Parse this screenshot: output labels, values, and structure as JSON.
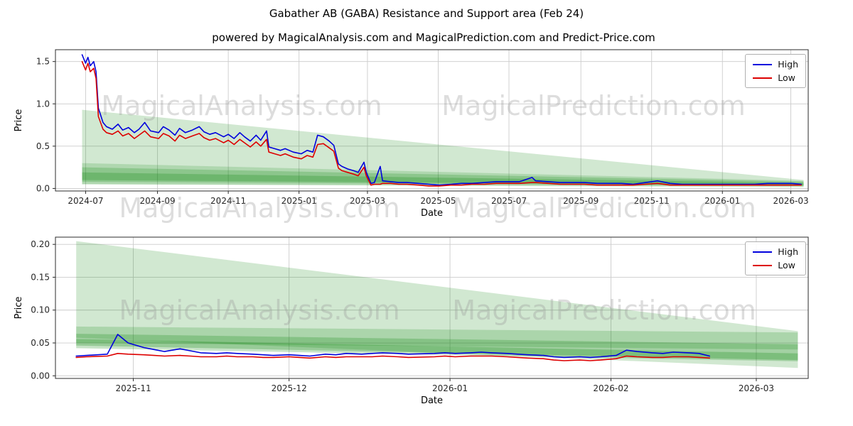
{
  "title": "Gabather AB (GABA) Resistance and Support area (Feb 24)",
  "subtitle": "powered by MagicalAnalysis.com and MagicalPrediction.com and Predict-Price.com",
  "watermarks": [
    "MagicalAnalysis.com",
    "MagicalPrediction.com"
  ],
  "colors": {
    "high": "#0000dd",
    "low": "#dd0000",
    "band": "#008000",
    "grid": "#cccccc",
    "spine": "#2b2b2b",
    "text": "#262626"
  },
  "chart_data": [
    {
      "type": "line",
      "title": "",
      "xlabel": "Date",
      "ylabel": "Price",
      "grid": true,
      "legend_position": "upper right",
      "xlim": [
        "2024-06-05",
        "2026-03-16"
      ],
      "ylim": [
        -0.03,
        1.64
      ],
      "x_ticks": [
        "2024-07",
        "2024-09",
        "2024-11",
        "2025-01",
        "2025-03",
        "2025-05",
        "2025-07",
        "2025-09",
        "2025-11",
        "2026-01",
        "2026-03"
      ],
      "y_ticks": [
        "0.0",
        "0.5",
        "1.0",
        "1.5"
      ],
      "dates": [
        "2024-06-28",
        "2024-07-01",
        "2024-07-03",
        "2024-07-05",
        "2024-07-08",
        "2024-07-10",
        "2024-07-12",
        "2024-07-16",
        "2024-07-19",
        "2024-07-24",
        "2024-07-29",
        "2024-08-02",
        "2024-08-07",
        "2024-08-12",
        "2024-08-16",
        "2024-08-21",
        "2024-08-26",
        "2024-09-02",
        "2024-09-06",
        "2024-09-11",
        "2024-09-16",
        "2024-09-20",
        "2024-09-25",
        "2024-10-01",
        "2024-10-07",
        "2024-10-11",
        "2024-10-16",
        "2024-10-21",
        "2024-10-28",
        "2024-11-01",
        "2024-11-06",
        "2024-11-11",
        "2024-11-15",
        "2024-11-20",
        "2024-11-25",
        "2024-11-29",
        "2024-12-04",
        "2024-12-06",
        "2024-12-11",
        "2024-12-16",
        "2024-12-20",
        "2024-12-27",
        "2025-01-03",
        "2025-01-08",
        "2025-01-13",
        "2025-01-17",
        "2025-01-22",
        "2025-01-27",
        "2025-01-31",
        "2025-02-04",
        "2025-02-07",
        "2025-02-12",
        "2025-02-17",
        "2025-02-21",
        "2025-02-26",
        "2025-02-28",
        "2025-03-04",
        "2025-03-07",
        "2025-03-12",
        "2025-03-14",
        "2025-03-21",
        "2025-03-28",
        "2025-04-04",
        "2025-04-14",
        "2025-04-23",
        "2025-05-02",
        "2025-05-12",
        "2025-05-21",
        "2025-05-30",
        "2025-06-10",
        "2025-06-20",
        "2025-06-30",
        "2025-07-10",
        "2025-07-21",
        "2025-07-24",
        "2025-08-04",
        "2025-08-14",
        "2025-08-25",
        "2025-09-04",
        "2025-09-15",
        "2025-09-25",
        "2025-10-06",
        "2025-10-16",
        "2025-10-27",
        "2025-11-06",
        "2025-11-17",
        "2025-11-27",
        "2025-12-08",
        "2025-12-18",
        "2025-12-29",
        "2026-01-08",
        "2026-01-19",
        "2026-01-29",
        "2026-02-09",
        "2026-02-19",
        "2026-03-02",
        "2026-03-10"
      ],
      "series": [
        {
          "name": "High",
          "color": "#0000dd",
          "values": [
            1.58,
            1.48,
            1.55,
            1.45,
            1.5,
            1.38,
            0.95,
            0.78,
            0.73,
            0.7,
            0.76,
            0.69,
            0.72,
            0.66,
            0.7,
            0.78,
            0.68,
            0.66,
            0.73,
            0.69,
            0.63,
            0.71,
            0.66,
            0.69,
            0.73,
            0.67,
            0.64,
            0.66,
            0.61,
            0.64,
            0.59,
            0.66,
            0.61,
            0.56,
            0.63,
            0.57,
            0.68,
            0.49,
            0.47,
            0.45,
            0.47,
            0.43,
            0.41,
            0.45,
            0.43,
            0.63,
            0.61,
            0.56,
            0.51,
            0.29,
            0.26,
            0.23,
            0.21,
            0.19,
            0.31,
            0.19,
            0.06,
            0.07,
            0.26,
            0.09,
            0.08,
            0.07,
            0.07,
            0.06,
            0.05,
            0.04,
            0.05,
            0.06,
            0.06,
            0.07,
            0.08,
            0.08,
            0.08,
            0.13,
            0.09,
            0.08,
            0.07,
            0.07,
            0.07,
            0.06,
            0.06,
            0.06,
            0.05,
            0.07,
            0.09,
            0.06,
            0.05,
            0.05,
            0.05,
            0.05,
            0.05,
            0.05,
            0.05,
            0.06,
            0.06,
            0.06,
            0.05
          ]
        },
        {
          "name": "Low",
          "color": "#dd0000",
          "values": [
            1.5,
            1.4,
            1.48,
            1.38,
            1.42,
            1.3,
            0.85,
            0.7,
            0.66,
            0.64,
            0.68,
            0.62,
            0.65,
            0.59,
            0.63,
            0.68,
            0.61,
            0.59,
            0.65,
            0.62,
            0.56,
            0.63,
            0.59,
            0.62,
            0.65,
            0.6,
            0.57,
            0.59,
            0.54,
            0.57,
            0.52,
            0.58,
            0.54,
            0.49,
            0.55,
            0.5,
            0.58,
            0.43,
            0.41,
            0.39,
            0.41,
            0.37,
            0.35,
            0.39,
            0.37,
            0.52,
            0.53,
            0.48,
            0.44,
            0.24,
            0.21,
            0.19,
            0.17,
            0.15,
            0.25,
            0.15,
            0.04,
            0.05,
            0.05,
            0.06,
            0.06,
            0.05,
            0.05,
            0.04,
            0.03,
            0.03,
            0.04,
            0.04,
            0.05,
            0.05,
            0.06,
            0.06,
            0.06,
            0.07,
            0.07,
            0.06,
            0.05,
            0.05,
            0.05,
            0.04,
            0.04,
            0.04,
            0.04,
            0.05,
            0.06,
            0.04,
            0.04,
            0.04,
            0.04,
            0.04,
            0.04,
            0.04,
            0.04,
            0.04,
            0.04,
            0.04,
            0.04
          ]
        }
      ],
      "bands": [
        {
          "alpha": 0.18,
          "points": [
            [
              "2024-06-28",
              0.93
            ],
            [
              "2026-03-12",
              0.1
            ],
            [
              "2026-03-12",
              0.015
            ],
            [
              "2024-06-28",
              0.05
            ]
          ]
        },
        {
          "alpha": 0.16,
          "points": [
            [
              "2024-06-28",
              0.3
            ],
            [
              "2026-03-12",
              0.09
            ],
            [
              "2026-03-12",
              0.025
            ],
            [
              "2024-06-28",
              0.05
            ]
          ]
        },
        {
          "alpha": 0.2,
          "points": [
            [
              "2024-06-28",
              0.25
            ],
            [
              "2026-03-12",
              0.08
            ],
            [
              "2026-03-12",
              0.03
            ],
            [
              "2024-06-28",
              0.08
            ]
          ]
        },
        {
          "alpha": 0.22,
          "points": [
            [
              "2024-06-28",
              0.19
            ],
            [
              "2026-03-12",
              0.065
            ],
            [
              "2026-03-12",
              0.035
            ],
            [
              "2024-06-28",
              0.1
            ]
          ]
        }
      ]
    },
    {
      "type": "line",
      "title": "",
      "xlabel": "Date",
      "ylabel": "Price",
      "grid": true,
      "legend_position": "upper right",
      "xlim": [
        "2025-10-17",
        "2026-03-11"
      ],
      "ylim": [
        -0.004,
        0.211
      ],
      "x_ticks": [
        "2025-11",
        "2025-12",
        "2026-01",
        "2026-02",
        "2026-03"
      ],
      "y_ticks": [
        "0.00",
        "0.05",
        "0.10",
        "0.15",
        "0.20"
      ],
      "dates": [
        "2025-10-21",
        "2025-10-23",
        "2025-10-27",
        "2025-10-29",
        "2025-10-31",
        "2025-11-03",
        "2025-11-05",
        "2025-11-07",
        "2025-11-10",
        "2025-11-12",
        "2025-11-14",
        "2025-11-17",
        "2025-11-19",
        "2025-11-21",
        "2025-11-24",
        "2025-11-26",
        "2025-11-28",
        "2025-12-01",
        "2025-12-03",
        "2025-12-05",
        "2025-12-08",
        "2025-12-10",
        "2025-12-12",
        "2025-12-15",
        "2025-12-17",
        "2025-12-19",
        "2025-12-22",
        "2025-12-24",
        "2025-12-29",
        "2025-12-31",
        "2026-01-02",
        "2026-01-05",
        "2026-01-07",
        "2026-01-09",
        "2026-01-12",
        "2026-01-14",
        "2026-01-16",
        "2026-01-19",
        "2026-01-21",
        "2026-01-23",
        "2026-01-26",
        "2026-01-28",
        "2026-01-30",
        "2026-02-02",
        "2026-02-04",
        "2026-02-06",
        "2026-02-09",
        "2026-02-11",
        "2026-02-13",
        "2026-02-16",
        "2026-02-18",
        "2026-02-20"
      ],
      "series": [
        {
          "name": "High",
          "color": "#0000dd",
          "values": [
            0.03,
            0.031,
            0.033,
            0.063,
            0.05,
            0.043,
            0.04,
            0.037,
            0.041,
            0.038,
            0.035,
            0.034,
            0.035,
            0.034,
            0.033,
            0.032,
            0.031,
            0.032,
            0.031,
            0.03,
            0.033,
            0.032,
            0.034,
            0.033,
            0.034,
            0.035,
            0.034,
            0.033,
            0.034,
            0.035,
            0.034,
            0.035,
            0.036,
            0.035,
            0.034,
            0.033,
            0.032,
            0.031,
            0.029,
            0.028,
            0.029,
            0.028,
            0.029,
            0.031,
            0.039,
            0.037,
            0.035,
            0.034,
            0.036,
            0.035,
            0.034,
            0.03
          ]
        },
        {
          "name": "Low",
          "color": "#dd0000",
          "values": [
            0.028,
            0.029,
            0.03,
            0.034,
            0.033,
            0.032,
            0.031,
            0.03,
            0.031,
            0.03,
            0.029,
            0.029,
            0.03,
            0.029,
            0.029,
            0.028,
            0.028,
            0.029,
            0.028,
            0.027,
            0.029,
            0.028,
            0.029,
            0.029,
            0.029,
            0.03,
            0.029,
            0.028,
            0.029,
            0.03,
            0.029,
            0.03,
            0.03,
            0.03,
            0.029,
            0.028,
            0.027,
            0.026,
            0.024,
            0.023,
            0.024,
            0.023,
            0.024,
            0.026,
            0.03,
            0.029,
            0.028,
            0.028,
            0.029,
            0.029,
            0.028,
            0.027
          ]
        }
      ],
      "bands": [
        {
          "alpha": 0.18,
          "points": [
            [
              "2025-10-21",
              0.205
            ],
            [
              "2026-03-09",
              0.068
            ],
            [
              "2026-03-09",
              0.012
            ],
            [
              "2025-10-21",
              0.058
            ]
          ]
        },
        {
          "alpha": 0.18,
          "points": [
            [
              "2025-10-21",
              0.075
            ],
            [
              "2026-03-09",
              0.066
            ],
            [
              "2026-03-09",
              0.04
            ],
            [
              "2025-10-21",
              0.05
            ]
          ]
        },
        {
          "alpha": 0.22,
          "points": [
            [
              "2025-10-21",
              0.064
            ],
            [
              "2026-03-09",
              0.048
            ],
            [
              "2026-03-09",
              0.022
            ],
            [
              "2025-10-21",
              0.042
            ]
          ]
        },
        {
          "alpha": 0.24,
          "points": [
            [
              "2025-10-21",
              0.056
            ],
            [
              "2026-03-09",
              0.034
            ],
            [
              "2026-03-09",
              0.024
            ],
            [
              "2025-10-21",
              0.046
            ]
          ]
        }
      ]
    }
  ]
}
